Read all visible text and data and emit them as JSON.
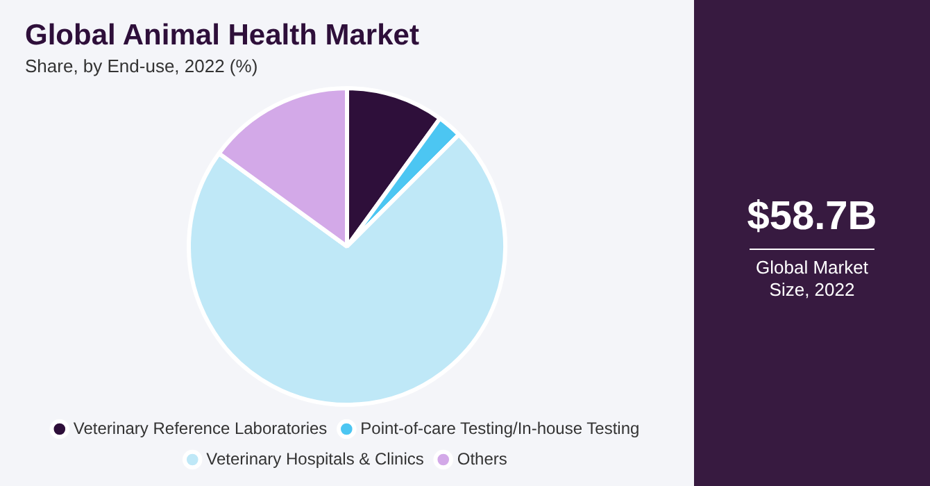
{
  "chart_data": {
    "type": "pie",
    "title": "Global Animal Health Market",
    "subtitle": "Share, by End-use, 2022 (%)",
    "categories": [
      "Veterinary Reference Laboratories",
      "Point-of-care Testing/In-house Testing",
      "Veterinary Hospitals & Clinics",
      "Others"
    ],
    "values": [
      10,
      2.5,
      72.5,
      15
    ],
    "colors": [
      "#2e0f3a",
      "#4cc6f2",
      "#bfe8f7",
      "#d3a9e8"
    ],
    "legend": "bottom",
    "annotations": [
      "$58.7B",
      "Global Market Size, 2022"
    ]
  }
}
